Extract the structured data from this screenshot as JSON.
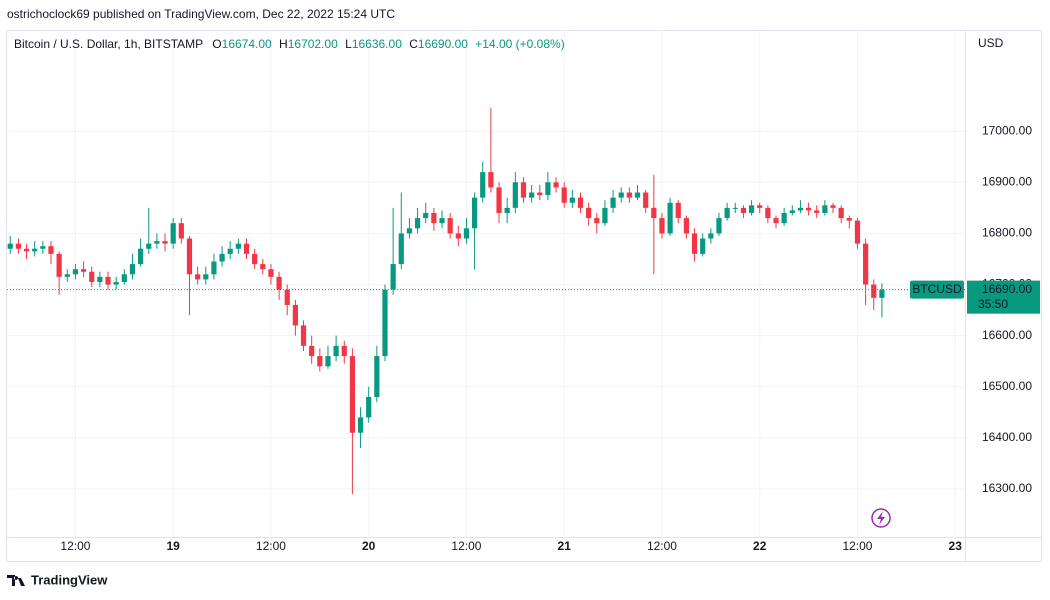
{
  "header": {
    "publisher": "ostrichoclock69 published on TradingView.com, Dec 22, 2022 15:24 UTC"
  },
  "chart_data": {
    "type": "candlestick",
    "title": "Bitcoin / U.S. Dollar, 1h, BITSTAMP",
    "ohlc_legend": {
      "open_label": "O",
      "open": "16674.00",
      "high_label": "H",
      "high": "16702.00",
      "low_label": "L",
      "low": "16636.00",
      "close_label": "C",
      "close": "16690.00",
      "change": "+14.00 (+0.08%)"
    },
    "x": [
      4,
      5,
      6,
      7,
      8,
      9,
      10,
      11,
      12,
      13,
      14,
      15,
      16,
      17,
      18,
      19,
      20,
      21,
      22,
      23,
      24,
      25,
      26,
      27,
      28,
      29,
      30,
      31,
      32,
      33,
      34,
      35,
      36,
      37,
      38,
      39,
      40,
      41,
      42,
      43,
      44,
      45,
      46,
      47,
      48,
      49,
      50,
      51,
      52,
      53,
      54,
      55,
      56,
      57,
      58,
      59,
      60,
      61,
      62,
      63,
      64,
      65,
      66,
      67,
      68,
      69,
      70,
      71,
      72,
      73,
      74,
      75,
      76,
      77,
      78,
      79,
      80,
      81,
      82,
      83,
      84,
      85,
      86,
      87,
      88,
      89,
      90,
      91,
      92,
      93,
      94,
      95,
      96,
      97,
      98,
      99,
      100,
      101,
      102,
      103,
      104,
      105,
      106,
      107,
      108,
      109,
      110,
      111
    ],
    "open": [
      16770,
      16780,
      16770,
      16765,
      16770,
      16775,
      16760,
      16715,
      16720,
      16730,
      16725,
      16705,
      16715,
      16700,
      16705,
      16720,
      16740,
      16770,
      16780,
      16785,
      16780,
      16820,
      16790,
      16720,
      16710,
      16720,
      16745,
      16760,
      16770,
      16780,
      16760,
      16740,
      16730,
      16715,
      16690,
      16660,
      16620,
      16580,
      16560,
      16540,
      16560,
      16580,
      16560,
      16410,
      16440,
      16480,
      16560,
      16690,
      16740,
      16800,
      16810,
      16830,
      16840,
      16820,
      16830,
      16800,
      16790,
      16810,
      16870,
      16920,
      16890,
      16840,
      16850,
      16900,
      16870,
      16880,
      16875,
      16900,
      16890,
      16860,
      16870,
      16850,
      16830,
      16820,
      16850,
      16870,
      16880,
      16870,
      16880,
      16850,
      16830,
      16800,
      16860,
      16830,
      16800,
      16760,
      16790,
      16800,
      16830,
      16850,
      16850,
      16840,
      16855,
      16850,
      16830,
      16820,
      16840,
      16845,
      16850,
      16845,
      16840,
      16855,
      16850,
      16830,
      16825,
      16780,
      16700,
      16674
    ],
    "high": [
      16795,
      16790,
      16780,
      16785,
      16785,
      16785,
      16765,
      16730,
      16740,
      16745,
      16735,
      16725,
      16725,
      16715,
      16730,
      16760,
      16790,
      16850,
      16800,
      16800,
      16830,
      16830,
      16795,
      16735,
      16735,
      16760,
      16775,
      16785,
      16790,
      16790,
      16770,
      16750,
      16740,
      16725,
      16700,
      16670,
      16630,
      16600,
      16575,
      16580,
      16600,
      16590,
      16575,
      16460,
      16500,
      16580,
      16700,
      16850,
      16880,
      16830,
      16850,
      16860,
      16850,
      16845,
      16840,
      16815,
      16830,
      16880,
      16940,
      17045,
      16900,
      16870,
      16920,
      16910,
      16895,
      16895,
      16920,
      16910,
      16900,
      16885,
      16880,
      16860,
      16840,
      16865,
      16885,
      16890,
      16890,
      16895,
      16885,
      16915,
      16840,
      16870,
      16865,
      16835,
      16810,
      16800,
      16810,
      16840,
      16860,
      16860,
      16855,
      16865,
      16860,
      16855,
      16835,
      16850,
      16855,
      16865,
      16860,
      16855,
      16865,
      16860,
      16855,
      16835,
      16830,
      16790,
      16710,
      16702
    ],
    "low": [
      16760,
      16760,
      16750,
      16755,
      16760,
      16740,
      16680,
      16705,
      16710,
      16715,
      16695,
      16695,
      16690,
      16690,
      16700,
      16710,
      16735,
      16760,
      16770,
      16765,
      16770,
      16780,
      16640,
      16700,
      16700,
      16710,
      16735,
      16750,
      16760,
      16750,
      16730,
      16720,
      16700,
      16670,
      16640,
      16600,
      16570,
      16545,
      16530,
      16535,
      16550,
      16545,
      16290,
      16380,
      16430,
      16470,
      16550,
      16680,
      16730,
      16790,
      16800,
      16820,
      16805,
      16810,
      16790,
      16775,
      16780,
      16730,
      16860,
      16880,
      16820,
      16820,
      16840,
      16860,
      16860,
      16865,
      16865,
      16880,
      16850,
      16850,
      16840,
      16815,
      16800,
      16815,
      16840,
      16860,
      16860,
      16865,
      16840,
      16720,
      16790,
      16795,
      16820,
      16790,
      16745,
      16755,
      16780,
      16795,
      16825,
      16840,
      16830,
      16835,
      16840,
      16820,
      16810,
      16815,
      16835,
      16840,
      16835,
      16830,
      16835,
      16840,
      16820,
      16810,
      16770,
      16660,
      16650,
      16636
    ],
    "close": [
      16780,
      16770,
      16765,
      16770,
      16775,
      16760,
      16715,
      16720,
      16730,
      16725,
      16705,
      16715,
      16700,
      16705,
      16720,
      16740,
      16770,
      16780,
      16785,
      16780,
      16820,
      16790,
      16720,
      16710,
      16720,
      16745,
      16760,
      16770,
      16780,
      16760,
      16740,
      16730,
      16715,
      16690,
      16660,
      16620,
      16580,
      16560,
      16540,
      16560,
      16580,
      16560,
      16410,
      16440,
      16480,
      16560,
      16690,
      16740,
      16800,
      16810,
      16830,
      16840,
      16820,
      16830,
      16800,
      16790,
      16810,
      16870,
      16920,
      16890,
      16840,
      16850,
      16900,
      16870,
      16880,
      16875,
      16900,
      16890,
      16860,
      16870,
      16850,
      16830,
      16820,
      16850,
      16870,
      16880,
      16870,
      16880,
      16850,
      16830,
      16800,
      16860,
      16830,
      16800,
      16760,
      16790,
      16800,
      16830,
      16850,
      16850,
      16840,
      16855,
      16850,
      16830,
      16820,
      16840,
      16845,
      16850,
      16845,
      16840,
      16855,
      16850,
      16830,
      16825,
      16780,
      16700,
      16674,
      16690
    ],
    "up_color": "#089981",
    "down_color": "#f23645",
    "xlim": [
      3.6,
      121.2
    ],
    "xticks": [
      {
        "value": 12,
        "label": "12:00"
      },
      {
        "value": 24,
        "label": "19"
      },
      {
        "value": 36,
        "label": "12:00"
      },
      {
        "value": 48,
        "label": "20"
      },
      {
        "value": 60,
        "label": "12:00"
      },
      {
        "value": 72,
        "label": "21"
      },
      {
        "value": 84,
        "label": "12:00"
      },
      {
        "value": 96,
        "label": "22"
      },
      {
        "value": 108,
        "label": "12:00"
      },
      {
        "value": 120,
        "label": "23"
      }
    ],
    "ylim": [
      16206,
      17198
    ],
    "yticks": [
      {
        "value": 16300,
        "label": "16300.00"
      },
      {
        "value": 16400,
        "label": "16400.00"
      },
      {
        "value": 16500,
        "label": "16500.00"
      },
      {
        "value": 16600,
        "label": "16600.00"
      },
      {
        "value": 16700,
        "label": "16700.00"
      },
      {
        "value": 16800,
        "label": "16800.00"
      },
      {
        "value": 16900,
        "label": "16900.00"
      },
      {
        "value": 17000,
        "label": "17000.00"
      }
    ],
    "y_axis_label": "USD",
    "grid": true,
    "symbol": "BTCUSD",
    "last_price": {
      "value": 16690,
      "label": "16690.00"
    },
    "countdown": "35:50"
  },
  "footer": {
    "brand": "TradingView"
  }
}
